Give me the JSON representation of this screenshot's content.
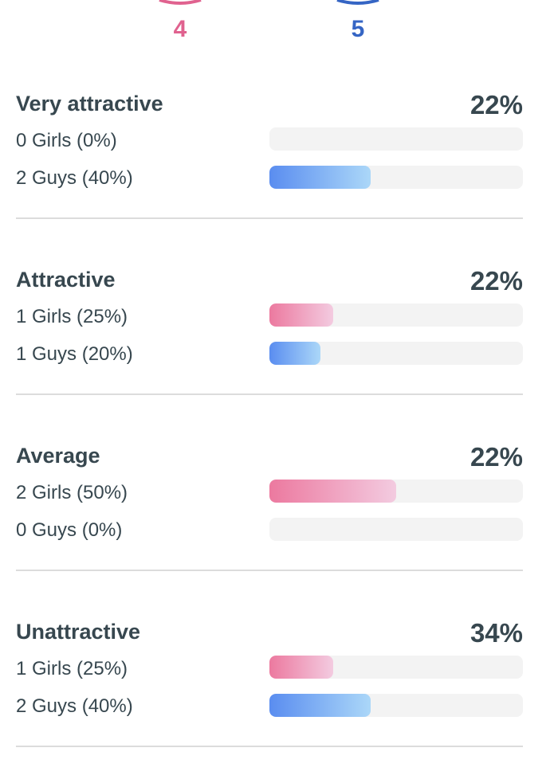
{
  "counts": {
    "girls": "4",
    "guys": "5"
  },
  "sections": [
    {
      "title": "Very attractive",
      "total": "22%",
      "rows": [
        {
          "group": "girls",
          "label": "0 Girls (0%)",
          "percent": 0
        },
        {
          "group": "guys",
          "label": "2 Guys (40%)",
          "percent": 40
        }
      ]
    },
    {
      "title": "Attractive",
      "total": "22%",
      "rows": [
        {
          "group": "girls",
          "label": "1 Girls (25%)",
          "percent": 25
        },
        {
          "group": "guys",
          "label": "1 Guys (20%)",
          "percent": 20
        }
      ]
    },
    {
      "title": "Average",
      "total": "22%",
      "rows": [
        {
          "group": "girls",
          "label": "2 Girls (50%)",
          "percent": 50
        },
        {
          "group": "guys",
          "label": "0 Guys (0%)",
          "percent": 0
        }
      ]
    },
    {
      "title": "Unattractive",
      "total": "34%",
      "rows": [
        {
          "group": "girls",
          "label": "1 Girls (25%)",
          "percent": 25
        },
        {
          "group": "guys",
          "label": "2 Guys (40%)",
          "percent": 40
        }
      ]
    }
  ]
}
